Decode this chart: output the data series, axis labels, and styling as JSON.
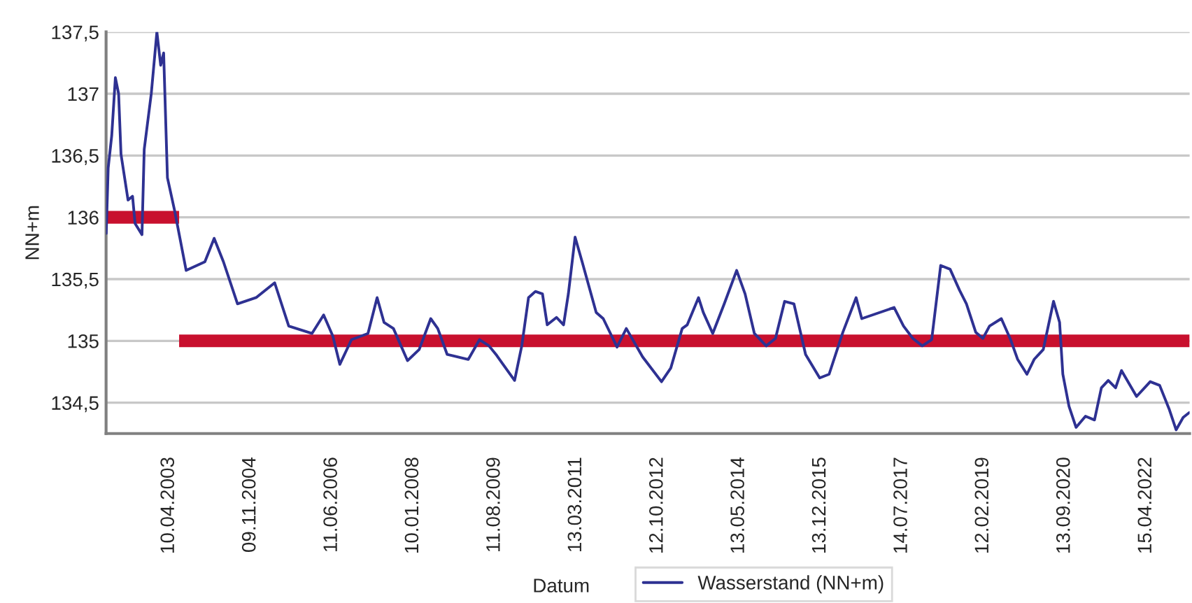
{
  "chart_data": {
    "type": "line",
    "xlabel": "Datum",
    "ylabel": "NN+m",
    "xlim": [
      "2002-01-18",
      "2023-02-17"
    ],
    "xticks": [
      {
        "value": "2003-04-10",
        "label": "10.04.2003"
      },
      {
        "value": "2004-11-09",
        "label": "09.11.2004"
      },
      {
        "value": "2006-06-11",
        "label": "11.06.2006"
      },
      {
        "value": "2008-01-10",
        "label": "10.01.2008"
      },
      {
        "value": "2009-08-11",
        "label": "11.08.2009"
      },
      {
        "value": "2011-03-13",
        "label": "13.03.2011"
      },
      {
        "value": "2012-10-12",
        "label": "12.10.2012"
      },
      {
        "value": "2014-05-13",
        "label": "13.05.2014"
      },
      {
        "value": "2015-12-13",
        "label": "13.12.2015"
      },
      {
        "value": "2017-07-14",
        "label": "14.07.2017"
      },
      {
        "value": "2019-02-12",
        "label": "12.02.2019"
      },
      {
        "value": "2020-09-13",
        "label": "13.09.2020"
      },
      {
        "value": "2022-04-15",
        "label": "15.04.2022"
      }
    ],
    "ylim": [
      134.25,
      137.5
    ],
    "yticks": [
      {
        "value": 134.5,
        "label": "134,5"
      },
      135,
      {
        "value": 135.5,
        "label": "135,5"
      },
      136,
      {
        "value": 136.5,
        "label": "136,5"
      },
      137,
      {
        "value": 137.5,
        "label": "137,5"
      }
    ],
    "grid": "y",
    "legend": "bottom",
    "line_style": "solid",
    "marker": "none",
    "series": [
      {
        "name": "Wasserstand (NN+m)",
        "color": "#2e3192",
        "x": [
          "2002-01-19",
          "2002-02-02",
          "2002-02-27",
          "2002-03-25",
          "2002-04-17",
          "2002-05-04",
          "2002-06-23",
          "2002-07-25",
          "2002-08-12",
          "2002-09-30",
          "2002-10-16",
          "2002-12-05",
          "2003-01-14",
          "2003-02-10",
          "2003-03-03",
          "2003-03-30",
          "2003-05-19",
          "2003-08-10",
          "2003-12-21",
          "2004-02-25",
          "2004-05-01",
          "2004-08-09",
          "2004-12-19",
          "2005-04-30",
          "2005-08-08",
          "2006-01-20",
          "2006-04-13",
          "2006-06-17",
          "2006-08-06",
          "2006-10-28",
          "2007-02-22",
          "2007-04-28",
          "2007-06-16",
          "2007-08-22",
          "2007-11-30",
          "2008-02-21",
          "2008-05-13",
          "2008-07-02",
          "2008-09-07",
          "2009-02-04",
          "2009-04-25",
          "2009-07-01",
          "2009-08-20",
          "2009-10-09",
          "2009-12-30",
          "2010-02-19",
          "2010-04-08",
          "2010-05-27",
          "2010-07-16",
          "2010-08-19",
          "2010-10-24",
          "2010-12-13",
          "2011-01-16",
          "2011-03-05",
          "2011-04-24",
          "2011-08-02",
          "2011-09-21",
          "2011-12-28",
          "2012-03-03",
          "2012-06-27",
          "2012-11-08",
          "2013-01-13",
          "2013-04-04",
          "2013-05-10",
          "2013-07-29",
          "2013-09-01",
          "2013-11-07",
          "2014-01-28",
          "2014-04-26",
          "2014-06-25",
          "2014-08-30",
          "2014-11-22",
          "2015-01-27",
          "2015-04-02",
          "2015-06-07",
          "2015-08-29",
          "2015-12-07",
          "2016-02-12",
          "2016-05-20",
          "2016-08-22",
          "2016-10-01",
          "2017-05-19",
          "2017-07-25",
          "2017-09-29",
          "2017-12-05",
          "2018-02-10",
          "2018-04-15",
          "2018-06-21",
          "2018-08-27",
          "2018-10-15",
          "2018-12-20",
          "2019-02-09",
          "2019-03-28",
          "2019-06-20",
          "2019-08-25",
          "2019-10-14",
          "2019-12-19",
          "2020-02-08",
          "2020-04-13",
          "2020-06-25",
          "2020-08-07",
          "2020-08-30",
          "2020-10-13",
          "2020-12-02",
          "2021-02-07",
          "2021-04-12",
          "2021-05-31",
          "2021-07-19",
          "2021-09-09",
          "2021-10-21",
          "2022-02-05",
          "2022-05-13",
          "2022-07-19",
          "2022-09-24",
          "2022-11-13",
          "2023-01-02",
          "2023-02-15"
        ],
        "values": [
          135.87,
          136.4,
          136.66,
          137.13,
          137.0,
          136.51,
          136.14,
          136.17,
          135.95,
          135.86,
          136.55,
          137.0,
          137.5,
          137.23,
          137.33,
          136.32,
          136.06,
          135.57,
          135.64,
          135.83,
          135.64,
          135.3,
          135.35,
          135.47,
          135.12,
          135.06,
          135.21,
          135.04,
          134.81,
          135.01,
          135.06,
          135.35,
          135.15,
          135.1,
          134.84,
          134.93,
          135.18,
          135.1,
          134.89,
          134.85,
          135.01,
          134.96,
          134.89,
          134.81,
          134.68,
          134.96,
          135.35,
          135.4,
          135.38,
          135.13,
          135.19,
          135.13,
          135.38,
          135.84,
          135.64,
          135.23,
          135.18,
          134.95,
          135.1,
          134.87,
          134.67,
          134.78,
          135.1,
          135.13,
          135.35,
          135.23,
          135.06,
          135.3,
          135.57,
          135.38,
          135.06,
          134.96,
          135.02,
          135.32,
          135.3,
          134.89,
          134.7,
          134.73,
          135.07,
          135.35,
          135.18,
          135.27,
          135.12,
          135.02,
          134.96,
          135.01,
          135.61,
          135.58,
          135.41,
          135.3,
          135.07,
          135.02,
          135.12,
          135.18,
          135.01,
          134.85,
          134.73,
          134.85,
          134.93,
          135.32,
          135.15,
          134.73,
          134.47,
          134.3,
          134.39,
          134.36,
          134.62,
          134.68,
          134.62,
          134.76,
          134.55,
          134.67,
          134.64,
          134.45,
          134.28,
          134.38,
          134.42
        ]
      },
      {
        "color": "#c8102e",
        "x": [
          "2002-01-18",
          "2003-06-21"
        ],
        "values": [
          136,
          136
        ]
      },
      {
        "color": "#c8102e",
        "x": [
          "2003-06-21",
          "2023-02-17"
        ],
        "values": [
          135,
          135
        ]
      }
    ]
  }
}
